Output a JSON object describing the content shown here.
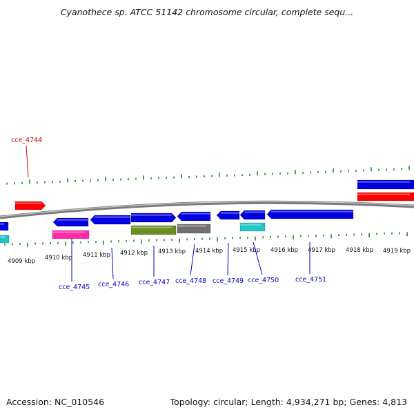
{
  "title": "Cyanothece sp. ATCC 51142 chromosome circular, complete sequ...",
  "footer": {
    "accession": "Accession: NC_010546",
    "topology": "Topology: circular; Length: 4,934,271 bp; Genes: 4,813"
  },
  "colors": {
    "backbone": "#8c8c8c",
    "tick": "#1a8a1a",
    "forward_label": "#cc0000",
    "reverse_label": "#0000cc",
    "blue_feature": "#0000e0",
    "red_feature": "#ff0000",
    "magenta_feature": "#ff2aa8",
    "olive_feature": "#6b8e23",
    "gray_feature": "#707070",
    "cyan_feature": "#20c8c8"
  },
  "kbp_labels": [
    "4909 kbp",
    "4910 kbp",
    "4911 kbp",
    "4912 kbp",
    "4913 kbp",
    "4914 kbp",
    "4915 kbp",
    "4916 kbp",
    "4917 kbp",
    "4918 kbp",
    "4919 kbp"
  ],
  "gene_labels": {
    "top": [
      "cce_4744"
    ],
    "bottom": [
      "cce_4745",
      "cce_4746",
      "cce_4747",
      "cce_4748",
      "cce_4749",
      "cce_4750",
      "cce_4751"
    ]
  }
}
